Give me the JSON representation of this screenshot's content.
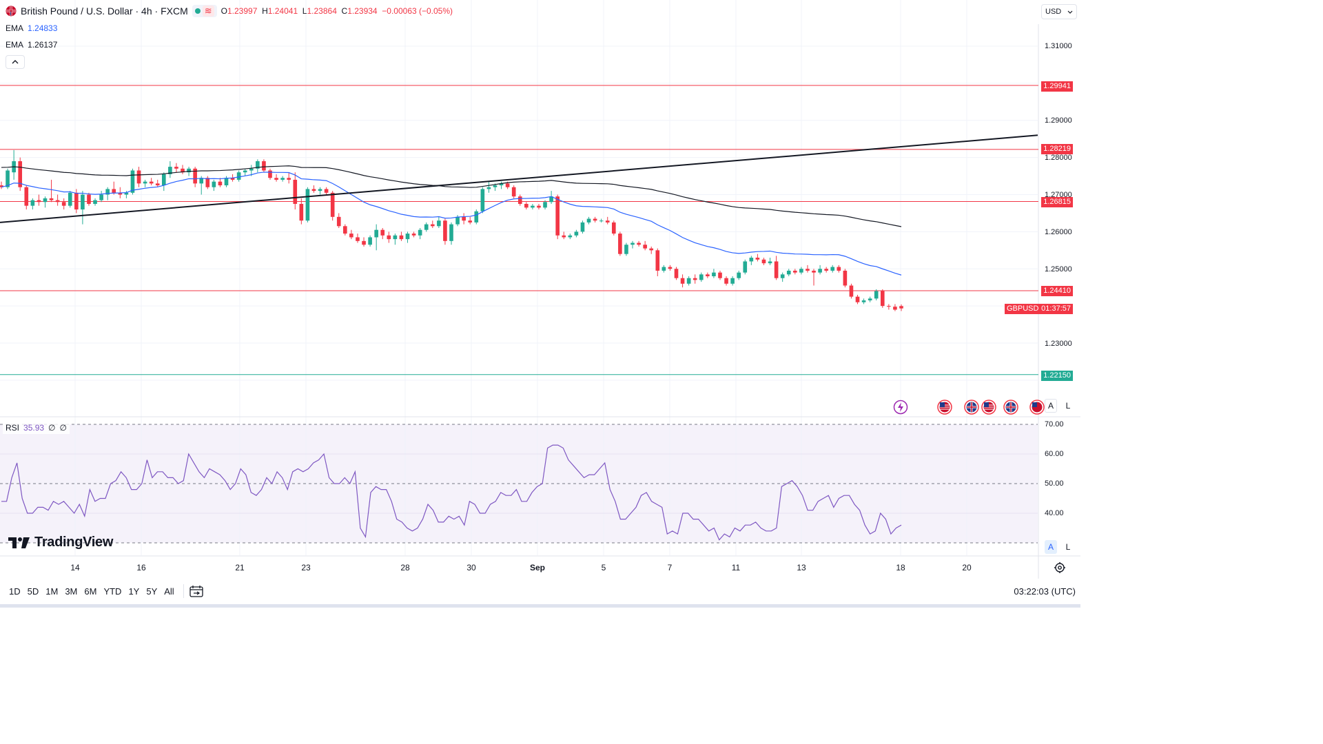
{
  "symbol": {
    "title": "British Pound / U.S. Dollar · 4h · FXCM",
    "open_label": "O",
    "open": "1.23997",
    "high_label": "H",
    "high": "1.24041",
    "low_label": "L",
    "low": "1.23864",
    "close_label": "C",
    "close": "1.23934",
    "change": "−0.00063 (−0.05%)"
  },
  "indicators": {
    "ema1_label": "EMA",
    "ema1_value": "1.24833",
    "ema1_color": "#2962ff",
    "ema2_label": "EMA",
    "ema2_value": "1.26137",
    "ema2_color": "#131722",
    "collapse_icon": "chevron-up-icon"
  },
  "currency": {
    "label": "USD",
    "icon": "chevron-down-icon"
  },
  "price_axis": {
    "ticks": [
      "1.31000",
      "1.29000",
      "1.28000",
      "1.27000",
      "1.26000",
      "1.25000",
      "1.23000"
    ],
    "levels": [
      {
        "value": "1.29941",
        "color": "#f23645"
      },
      {
        "value": "1.28219",
        "color": "#f23645"
      },
      {
        "value": "1.26815",
        "color": "#f23645"
      },
      {
        "value": "1.24410",
        "color": "#f23645"
      },
      {
        "value": "1.22150",
        "color": "#22ab94"
      }
    ],
    "symbol_tag": "GBPUSD",
    "countdown": "01:37:57",
    "auto_label": "A",
    "log_label": "L"
  },
  "rsi": {
    "label": "RSI",
    "value": "35.93",
    "extra1": "∅",
    "extra2": "∅",
    "ticks": [
      "70.00",
      "60.00",
      "50.00",
      "40.00"
    ],
    "line_color": "#7e57c2",
    "band_color": "#7e57c2"
  },
  "time_axis": {
    "labels": [
      "14",
      "16",
      "21",
      "23",
      "28",
      "30",
      "Sep",
      "5",
      "7",
      "11",
      "13",
      "18",
      "20"
    ]
  },
  "bottom_bar": {
    "ranges": [
      "1D",
      "5D",
      "1M",
      "3M",
      "6M",
      "YTD",
      "1Y",
      "5Y",
      "All"
    ],
    "calendar_icon": "calendar-range-icon",
    "clock": "03:22:03 (UTC)"
  },
  "brand": {
    "name": "TradingView"
  },
  "colors": {
    "up": "#22ab94",
    "down": "#f23645",
    "ema_fast": "#2962ff",
    "ema_slow": "#131722"
  },
  "chart_data": {
    "type": "candlestick",
    "timeframe": "4h",
    "candles_ohlc": [
      [
        1.2725,
        1.2735,
        1.2715,
        1.272
      ],
      [
        1.272,
        1.277,
        1.2715,
        1.2765
      ],
      [
        1.276,
        1.282,
        1.274,
        1.279
      ],
      [
        1.279,
        1.28,
        1.271,
        1.272
      ],
      [
        1.272,
        1.2725,
        1.266,
        1.267
      ],
      [
        1.267,
        1.269,
        1.266,
        1.2685
      ],
      [
        1.2685,
        1.27,
        1.267,
        1.268
      ],
      [
        1.268,
        1.2695,
        1.2665,
        1.269
      ],
      [
        1.269,
        1.274,
        1.268,
        1.2685
      ],
      [
        1.2685,
        1.27,
        1.267,
        1.268
      ],
      [
        1.268,
        1.269,
        1.266,
        1.267
      ],
      [
        1.267,
        1.271,
        1.2665,
        1.2705
      ],
      [
        1.2705,
        1.2715,
        1.265,
        1.266
      ],
      [
        1.266,
        1.271,
        1.262,
        1.27
      ],
      [
        1.27,
        1.2705,
        1.267,
        1.2675
      ],
      [
        1.2675,
        1.269,
        1.267,
        1.2685
      ],
      [
        1.2685,
        1.271,
        1.268,
        1.27
      ],
      [
        1.27,
        1.272,
        1.2685,
        1.2715
      ],
      [
        1.2715,
        1.2735,
        1.27,
        1.2705
      ],
      [
        1.2705,
        1.272,
        1.269,
        1.27
      ],
      [
        1.27,
        1.271,
        1.269,
        1.2705
      ],
      [
        1.2705,
        1.277,
        1.27,
        1.2765
      ],
      [
        1.2765,
        1.2775,
        1.272,
        1.273
      ],
      [
        1.273,
        1.274,
        1.272,
        1.2735
      ],
      [
        1.2735,
        1.2745,
        1.2725,
        1.273
      ],
      [
        1.273,
        1.274,
        1.272,
        1.2725
      ],
      [
        1.2725,
        1.276,
        1.271,
        1.2755
      ],
      [
        1.2755,
        1.279,
        1.2745,
        1.2775
      ],
      [
        1.2775,
        1.2785,
        1.276,
        1.277
      ],
      [
        1.277,
        1.278,
        1.2755,
        1.276
      ],
      [
        1.276,
        1.2775,
        1.275,
        1.277
      ],
      [
        1.277,
        1.2775,
        1.272,
        1.273
      ],
      [
        1.273,
        1.275,
        1.27,
        1.2745
      ],
      [
        1.2745,
        1.275,
        1.2715,
        1.272
      ],
      [
        1.272,
        1.274,
        1.271,
        1.2735
      ],
      [
        1.2735,
        1.2745,
        1.272,
        1.2725
      ],
      [
        1.2725,
        1.275,
        1.272,
        1.2745
      ],
      [
        1.2745,
        1.2755,
        1.2735,
        1.274
      ],
      [
        1.274,
        1.2765,
        1.2735,
        1.276
      ],
      [
        1.276,
        1.277,
        1.275,
        1.2765
      ],
      [
        1.2765,
        1.278,
        1.275,
        1.277
      ],
      [
        1.277,
        1.2795,
        1.276,
        1.279
      ],
      [
        1.279,
        1.2795,
        1.276,
        1.2765
      ],
      [
        1.2765,
        1.277,
        1.274,
        1.2745
      ],
      [
        1.2745,
        1.2755,
        1.2735,
        1.274
      ],
      [
        1.274,
        1.275,
        1.2735,
        1.2745
      ],
      [
        1.2745,
        1.276,
        1.273,
        1.274
      ],
      [
        1.274,
        1.276,
        1.266,
        1.2675
      ],
      [
        1.2675,
        1.269,
        1.262,
        1.263
      ],
      [
        1.263,
        1.272,
        1.2625,
        1.2715
      ],
      [
        1.2715,
        1.2725,
        1.2705,
        1.271
      ],
      [
        1.271,
        1.272,
        1.27,
        1.2715
      ],
      [
        1.2715,
        1.272,
        1.27,
        1.2705
      ],
      [
        1.2705,
        1.271,
        1.263,
        1.264
      ],
      [
        1.264,
        1.265,
        1.261,
        1.2615
      ],
      [
        1.2615,
        1.262,
        1.259,
        1.2595
      ],
      [
        1.2595,
        1.2605,
        1.258,
        1.2585
      ],
      [
        1.2585,
        1.2595,
        1.257,
        1.2575
      ],
      [
        1.2575,
        1.2585,
        1.256,
        1.2565
      ],
      [
        1.2565,
        1.259,
        1.256,
        1.2585
      ],
      [
        1.2585,
        1.262,
        1.255,
        1.2605
      ],
      [
        1.2605,
        1.261,
        1.258,
        1.259
      ],
      [
        1.259,
        1.26,
        1.257,
        1.258
      ],
      [
        1.258,
        1.2595,
        1.2565,
        1.259
      ],
      [
        1.259,
        1.26,
        1.2575,
        1.258
      ],
      [
        1.258,
        1.26,
        1.257,
        1.2595
      ],
      [
        1.2595,
        1.26,
        1.2585,
        1.259
      ],
      [
        1.259,
        1.261,
        1.258,
        1.2605
      ],
      [
        1.2605,
        1.2625,
        1.26,
        1.262
      ],
      [
        1.262,
        1.263,
        1.261,
        1.2615
      ],
      [
        1.2615,
        1.264,
        1.261,
        1.263
      ],
      [
        1.263,
        1.2635,
        1.2565,
        1.2575
      ],
      [
        1.2575,
        1.2625,
        1.2565,
        1.262
      ],
      [
        1.262,
        1.2645,
        1.2615,
        1.264
      ],
      [
        1.264,
        1.265,
        1.262,
        1.263
      ],
      [
        1.263,
        1.264,
        1.262,
        1.2625
      ],
      [
        1.2625,
        1.266,
        1.262,
        1.2655
      ],
      [
        1.2655,
        1.272,
        1.265,
        1.2715
      ],
      [
        1.2715,
        1.2735,
        1.2705,
        1.272
      ],
      [
        1.272,
        1.273,
        1.271,
        1.2725
      ],
      [
        1.2725,
        1.2735,
        1.2715,
        1.273
      ],
      [
        1.273,
        1.2735,
        1.2715,
        1.272
      ],
      [
        1.272,
        1.2725,
        1.269,
        1.2695
      ],
      [
        1.2695,
        1.27,
        1.267,
        1.2675
      ],
      [
        1.2675,
        1.268,
        1.266,
        1.2665
      ],
      [
        1.2665,
        1.2675,
        1.266,
        1.267
      ],
      [
        1.267,
        1.2675,
        1.266,
        1.2665
      ],
      [
        1.2665,
        1.2685,
        1.266,
        1.268
      ],
      [
        1.268,
        1.271,
        1.2675,
        1.2695
      ],
      [
        1.2695,
        1.27,
        1.258,
        1.259
      ],
      [
        1.259,
        1.26,
        1.258,
        1.2585
      ],
      [
        1.2585,
        1.2595,
        1.258,
        1.259
      ],
      [
        1.259,
        1.2605,
        1.2585,
        1.26
      ],
      [
        1.26,
        1.263,
        1.2595,
        1.2625
      ],
      [
        1.2625,
        1.264,
        1.262,
        1.2635
      ],
      [
        1.2635,
        1.264,
        1.2625,
        1.263
      ],
      [
        1.263,
        1.2635,
        1.2625,
        1.263
      ],
      [
        1.263,
        1.264,
        1.262,
        1.2625
      ],
      [
        1.2625,
        1.263,
        1.259,
        1.2595
      ],
      [
        1.2595,
        1.26,
        1.2535,
        1.254
      ],
      [
        1.254,
        1.257,
        1.2535,
        1.2565
      ],
      [
        1.2565,
        1.2575,
        1.2555,
        1.257
      ],
      [
        1.257,
        1.2575,
        1.256,
        1.2565
      ],
      [
        1.2565,
        1.2575,
        1.255,
        1.2555
      ],
      [
        1.2555,
        1.256,
        1.254,
        1.255
      ],
      [
        1.255,
        1.2555,
        1.248,
        1.2495
      ],
      [
        1.2495,
        1.251,
        1.249,
        1.2505
      ],
      [
        1.2505,
        1.251,
        1.2495,
        1.25
      ],
      [
        1.25,
        1.2505,
        1.247,
        1.2475
      ],
      [
        1.2475,
        1.2485,
        1.245,
        1.246
      ],
      [
        1.246,
        1.248,
        1.2455,
        1.2475
      ],
      [
        1.2475,
        1.2485,
        1.246,
        1.247
      ],
      [
        1.247,
        1.249,
        1.2465,
        1.2485
      ],
      [
        1.2485,
        1.249,
        1.2475,
        1.248
      ],
      [
        1.248,
        1.25,
        1.2475,
        1.249
      ],
      [
        1.249,
        1.2495,
        1.247,
        1.2475
      ],
      [
        1.2475,
        1.248,
        1.2455,
        1.246
      ],
      [
        1.246,
        1.248,
        1.2455,
        1.2475
      ],
      [
        1.2475,
        1.2495,
        1.247,
        1.249
      ],
      [
        1.249,
        1.2525,
        1.2485,
        1.252
      ],
      [
        1.252,
        1.2535,
        1.251,
        1.253
      ],
      [
        1.253,
        1.254,
        1.252,
        1.2525
      ],
      [
        1.2525,
        1.253,
        1.251,
        1.2515
      ],
      [
        1.2515,
        1.253,
        1.251,
        1.252
      ],
      [
        1.252,
        1.2535,
        1.247,
        1.2475
      ],
      [
        1.2475,
        1.249,
        1.2465,
        1.2485
      ],
      [
        1.2485,
        1.25,
        1.248,
        1.2495
      ],
      [
        1.2495,
        1.25,
        1.2485,
        1.249
      ],
      [
        1.249,
        1.2505,
        1.2485,
        1.25
      ],
      [
        1.25,
        1.251,
        1.249,
        1.2495
      ],
      [
        1.2495,
        1.25,
        1.2455,
        1.249
      ],
      [
        1.249,
        1.251,
        1.2485,
        1.25
      ],
      [
        1.25,
        1.2505,
        1.249,
        1.2495
      ],
      [
        1.2495,
        1.251,
        1.249,
        1.2505
      ],
      [
        1.2505,
        1.251,
        1.249,
        1.2495
      ],
      [
        1.2495,
        1.25,
        1.245,
        1.2455
      ],
      [
        1.2455,
        1.246,
        1.242,
        1.2425
      ],
      [
        1.2425,
        1.243,
        1.2405,
        1.241
      ],
      [
        1.241,
        1.242,
        1.2405,
        1.2415
      ],
      [
        1.2415,
        1.2425,
        1.241,
        1.242
      ],
      [
        1.242,
        1.2445,
        1.2415,
        1.244
      ],
      [
        1.244,
        1.2445,
        1.2395,
        1.24
      ],
      [
        1.24,
        1.2405,
        1.239,
        1.2398
      ],
      [
        1.2398,
        1.2405,
        1.2386,
        1.239
      ],
      [
        1.23997,
        1.24041,
        1.23864,
        1.23934
      ]
    ],
    "ema_fast_last": 1.24833,
    "ema_slow_last": 1.26137,
    "rsi_values": [
      44,
      44,
      52,
      57,
      45,
      40,
      40,
      42,
      42,
      41,
      44,
      43,
      44,
      42,
      40,
      43,
      39,
      48,
      44,
      45,
      45,
      50,
      51,
      54,
      52,
      48,
      48,
      50,
      58,
      52,
      54,
      54,
      52,
      52,
      50,
      51,
      60,
      57,
      54,
      52,
      55,
      54,
      53,
      51,
      48,
      50,
      55,
      53,
      47,
      46,
      48,
      52,
      50,
      54,
      52,
      48,
      54,
      55,
      54,
      55,
      57,
      58,
      60,
      52,
      50,
      50,
      52,
      50,
      54,
      35,
      32,
      47,
      49,
      48,
      48,
      44,
      38,
      37,
      35,
      34,
      35,
      38,
      43,
      41,
      37,
      37,
      39,
      38,
      39,
      36,
      44,
      43,
      40,
      40,
      43,
      44,
      47,
      46,
      46,
      48,
      44,
      44,
      47,
      49,
      50,
      62,
      63,
      63,
      62,
      58,
      56,
      54,
      52,
      53,
      53,
      55,
      57,
      48,
      44,
      38,
      38,
      40,
      42,
      46,
      47,
      44,
      43,
      42,
      33,
      34,
      33,
      40,
      40,
      38,
      38,
      36,
      34,
      35,
      31,
      33,
      32,
      35,
      34,
      36,
      36,
      37,
      35,
      34,
      34,
      35,
      49,
      50,
      51,
      49,
      46,
      41,
      41,
      44,
      45,
      46,
      42,
      45,
      46,
      46,
      43,
      41,
      36,
      33,
      34,
      40,
      38,
      33,
      35,
      36
    ],
    "rsi_last": 35.93,
    "rsi_levels": [
      70,
      50,
      30
    ],
    "ylim": [
      1.215,
      1.315
    ],
    "rsi_ylim": [
      28,
      72
    ],
    "horizontal_levels": [
      1.29941,
      1.28219,
      1.26815,
      1.2441,
      1.2215
    ],
    "trendline": {
      "from": [
        0,
        1.2625
      ],
      "to": [
        1.0,
        1.286
      ]
    }
  }
}
